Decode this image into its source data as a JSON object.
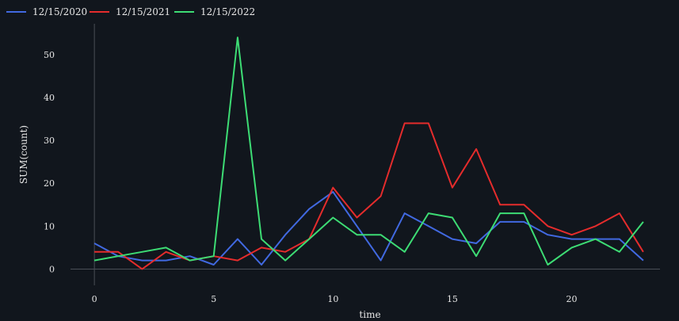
{
  "chart_data": {
    "type": "line",
    "xlabel": "time",
    "ylabel": "SUM(count)",
    "xlim": [
      -1,
      23.7
    ],
    "ylim": [
      -3.8,
      57.2
    ],
    "x_ticks": [
      0,
      5,
      10,
      15,
      20
    ],
    "y_ticks": [
      0,
      10,
      20,
      30,
      40,
      50
    ],
    "grid": false,
    "legend_position": "top-left",
    "x": [
      0,
      1,
      2,
      3,
      4,
      5,
      6,
      7,
      8,
      9,
      10,
      11,
      12,
      13,
      14,
      15,
      16,
      17,
      18,
      19,
      20,
      21,
      22,
      23
    ],
    "series": [
      {
        "name": "12/15/2020",
        "color": "#4169e1",
        "values": [
          6,
          3,
          2,
          2,
          3,
          1,
          7,
          1,
          8,
          14,
          18,
          10,
          2,
          13,
          10,
          7,
          6,
          11,
          11,
          8,
          7,
          7,
          7,
          2
        ]
      },
      {
        "name": "12/15/2021",
        "color": "#e52c2c",
        "values": [
          4,
          4,
          0,
          4,
          2,
          3,
          2,
          5,
          4,
          7,
          19,
          12,
          17,
          34,
          34,
          19,
          28,
          15,
          15,
          10,
          8,
          10,
          13,
          4
        ]
      },
      {
        "name": "12/15/2022",
        "color": "#3ddc74",
        "values": [
          2,
          3,
          4,
          5,
          2,
          3,
          54,
          7,
          2,
          7,
          12,
          8,
          8,
          4,
          13,
          12,
          3,
          13,
          13,
          1,
          5,
          7,
          4,
          11
        ]
      }
    ]
  }
}
